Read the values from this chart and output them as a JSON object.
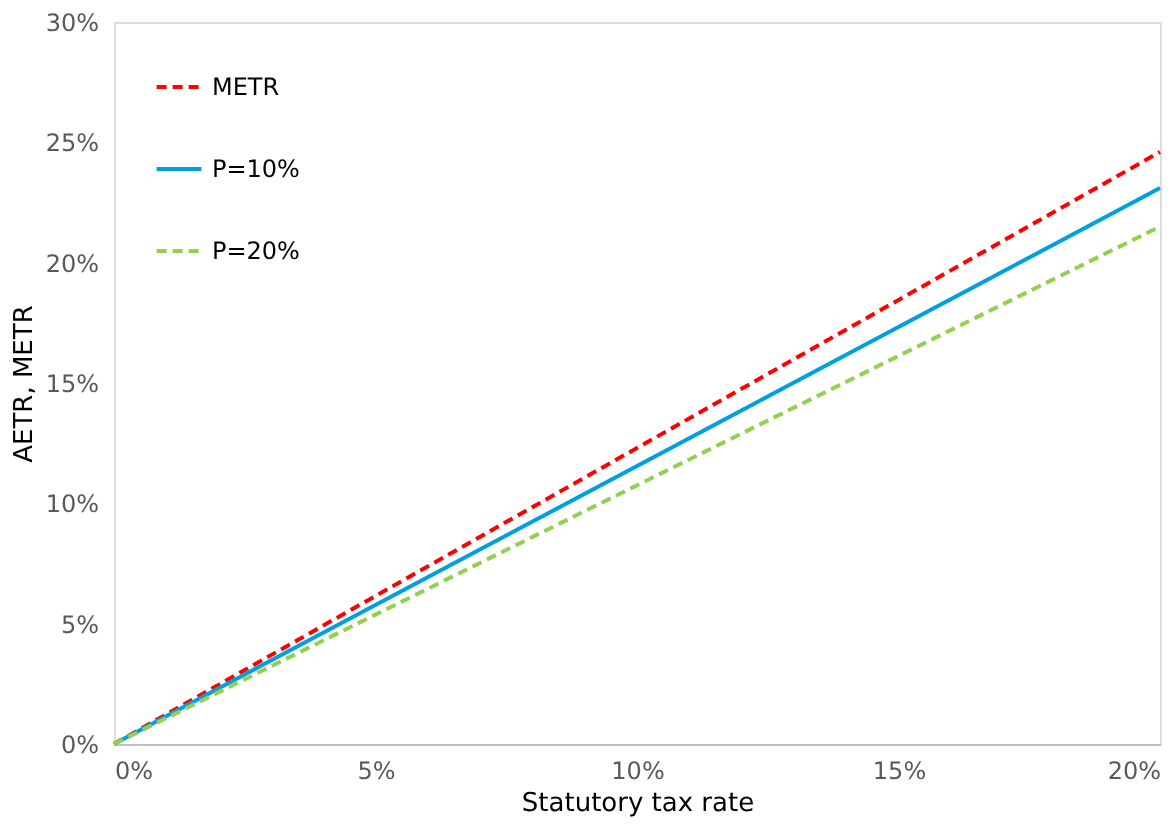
{
  "chart_data": {
    "type": "line",
    "xlabel": "Statutory tax rate",
    "ylabel": "AETR, METR",
    "x": [
      0,
      20
    ],
    "series": [
      {
        "name": "METR",
        "color": "#ff0000",
        "values": [
          0,
          24.6
        ],
        "line_style": "dashed"
      },
      {
        "name": "P=10%",
        "color": "#00a0e0",
        "values": [
          0,
          23.1
        ],
        "line_style": "solid"
      },
      {
        "name": "P=20%",
        "color": "#92d050",
        "values": [
          0,
          21.5
        ],
        "line_style": "dashed"
      }
    ],
    "xlim": [
      0,
      20
    ],
    "xticks": [
      {
        "value": 0,
        "label": "0%"
      },
      {
        "value": 5,
        "label": "5%"
      },
      {
        "value": 10,
        "label": "10%"
      },
      {
        "value": 15,
        "label": "15%"
      },
      {
        "value": 20,
        "label": "20%"
      }
    ],
    "ylim": [
      0,
      30
    ],
    "yticks": [
      {
        "value": 0,
        "label": "0%"
      },
      {
        "value": 5,
        "label": "5%"
      },
      {
        "value": 10,
        "label": "10%"
      },
      {
        "value": 15,
        "label": "15%"
      },
      {
        "value": 20,
        "label": "20%"
      },
      {
        "value": 25,
        "label": "25%"
      },
      {
        "value": 30,
        "label": "30%"
      }
    ],
    "grid": false,
    "legend": "top left",
    "marker": "none"
  }
}
